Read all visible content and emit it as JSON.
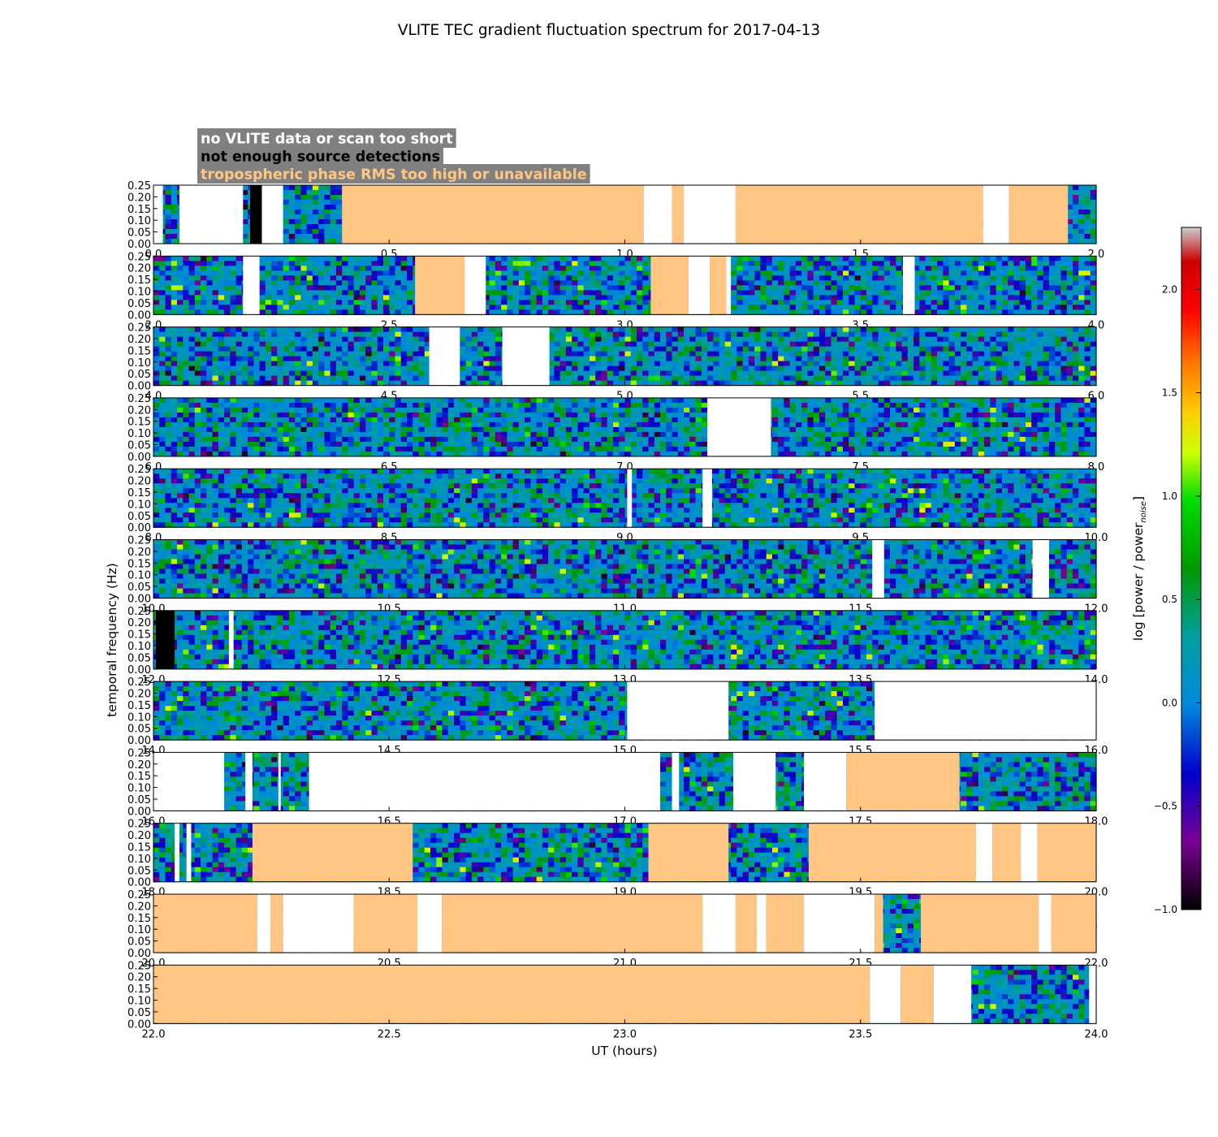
{
  "chart_data": {
    "type": "heatmap",
    "title": "VLITE TEC gradient fluctuation spectrum for 2017-04-13",
    "xlabel": "UT (hours)",
    "ylabel": "temporal frequency (Hz)",
    "ylim": [
      0,
      0.25
    ],
    "yticks": [
      "0.00",
      "0.05",
      "0.10",
      "0.15",
      "0.20",
      "0.25"
    ],
    "colorbar": {
      "label_main": "log [power / power",
      "label_sub": "noise",
      "label_end": "]",
      "range": [
        -1.0,
        2.3
      ],
      "ticks": [
        {
          "value": -1.0,
          "label": "−1.0"
        },
        {
          "value": -0.5,
          "label": "−0.5"
        },
        {
          "value": 0.0,
          "label": "0.0"
        },
        {
          "value": 0.5,
          "label": "0.5"
        },
        {
          "value": 1.0,
          "label": "1.0"
        },
        {
          "value": 1.5,
          "label": "1.5"
        },
        {
          "value": 2.0,
          "label": "2.0"
        }
      ],
      "colormap": [
        [
          0.0,
          "#000000"
        ],
        [
          0.1,
          "#7a0094"
        ],
        [
          0.2,
          "#0000cc"
        ],
        [
          0.3,
          "#0088dd"
        ],
        [
          0.4,
          "#00a0a0"
        ],
        [
          0.5,
          "#009900"
        ],
        [
          0.6,
          "#00dd00"
        ],
        [
          0.67,
          "#ccff00"
        ],
        [
          0.73,
          "#ffcc00"
        ],
        [
          0.8,
          "#ff7700"
        ],
        [
          0.88,
          "#ff0000"
        ],
        [
          0.95,
          "#cc0000"
        ],
        [
          1.0,
          "#cccccc"
        ]
      ]
    },
    "legend": {
      "placement": "top-left",
      "entries": [
        {
          "label": "no VLITE data or scan too short",
          "text_color": "#ffffff",
          "bg_color": "#808080"
        },
        {
          "label": "not enough source detections",
          "text_color": "#000000",
          "bg_color": "#808080"
        },
        {
          "label": "tropospheric phase RMS too high or unavailable",
          "text_color": "#ffc683",
          "bg_color": "#808080"
        }
      ]
    },
    "flag_colors": {
      "nodata": "#ffffff",
      "nodet": "#000000",
      "trop": "#ffc683"
    },
    "panels": [
      {
        "xlim": [
          0,
          2
        ],
        "xticks": [
          "0.0",
          "0.5",
          "1.0",
          "1.5",
          "2.0"
        ],
        "flags": [
          [
            0.0,
            0.02,
            "nodata"
          ],
          [
            0.055,
            0.19,
            "nodata"
          ],
          [
            0.205,
            0.23,
            "nodet"
          ],
          [
            0.23,
            0.275,
            "nodata"
          ],
          [
            0.4,
            1.04,
            "trop"
          ],
          [
            1.04,
            1.1,
            "nodata"
          ],
          [
            1.1,
            1.125,
            "trop"
          ],
          [
            1.125,
            1.235,
            "nodata"
          ],
          [
            1.235,
            1.76,
            "trop"
          ],
          [
            1.76,
            1.815,
            "nodata"
          ],
          [
            1.815,
            1.94,
            "trop"
          ]
        ]
      },
      {
        "xlim": [
          2,
          4
        ],
        "xticks": [
          "2.0",
          "2.5",
          "3.0",
          "3.5",
          "4.0"
        ],
        "flags": [
          [
            2.19,
            2.225,
            "nodata"
          ],
          [
            2.555,
            2.66,
            "trop"
          ],
          [
            2.66,
            2.705,
            "nodata"
          ],
          [
            3.055,
            3.135,
            "trop"
          ],
          [
            3.135,
            3.18,
            "nodata"
          ],
          [
            3.18,
            3.215,
            "trop"
          ],
          [
            3.215,
            3.225,
            "nodata"
          ],
          [
            3.59,
            3.615,
            "nodata"
          ]
        ]
      },
      {
        "xlim": [
          4,
          6
        ],
        "xticks": [
          "4.0",
          "4.5",
          "5.0",
          "5.5",
          "6.0"
        ],
        "flags": [
          [
            4.585,
            4.65,
            "nodata"
          ],
          [
            4.74,
            4.84,
            "nodata"
          ]
        ]
      },
      {
        "xlim": [
          6,
          8
        ],
        "xticks": [
          "6.0",
          "6.5",
          "7.0",
          "7.5",
          "8.0"
        ],
        "flags": [
          [
            7.175,
            7.31,
            "nodata"
          ]
        ]
      },
      {
        "xlim": [
          8,
          10
        ],
        "xticks": [
          "8.0",
          "8.5",
          "9.0",
          "9.5",
          "10.0"
        ],
        "flags": [
          [
            9.005,
            9.015,
            "nodata"
          ],
          [
            9.165,
            9.185,
            "nodata"
          ]
        ]
      },
      {
        "xlim": [
          10,
          12
        ],
        "xticks": [
          "10.0",
          "10.5",
          "11.0",
          "11.5",
          "12.0"
        ],
        "flags": [
          [
            11.525,
            11.55,
            "nodata"
          ],
          [
            11.865,
            11.9,
            "nodata"
          ]
        ]
      },
      {
        "xlim": [
          12,
          14
        ],
        "xticks": [
          "12.0",
          "12.5",
          "13.0",
          "13.5",
          "14.0"
        ],
        "flags": [
          [
            12.005,
            12.045,
            "nodet"
          ],
          [
            12.16,
            12.17,
            "nodata"
          ]
        ]
      },
      {
        "xlim": [
          14,
          16
        ],
        "xticks": [
          "14.0",
          "14.5",
          "15.0",
          "15.5",
          "16.0"
        ],
        "flags": [
          [
            15.005,
            15.22,
            "nodata"
          ],
          [
            15.53,
            16.0,
            "nodata"
          ]
        ]
      },
      {
        "xlim": [
          16,
          18
        ],
        "xticks": [
          "16.0",
          "16.5",
          "17.0",
          "17.5",
          "18.0"
        ],
        "flags": [
          [
            16.0,
            16.15,
            "nodata"
          ],
          [
            16.195,
            16.21,
            "nodata"
          ],
          [
            16.265,
            16.27,
            "nodata"
          ],
          [
            16.33,
            17.075,
            "nodata"
          ],
          [
            17.1,
            17.115,
            "nodata"
          ],
          [
            17.23,
            17.32,
            "nodata"
          ],
          [
            17.38,
            17.47,
            "nodata"
          ],
          [
            17.47,
            17.71,
            "trop"
          ]
        ]
      },
      {
        "xlim": [
          18,
          20
        ],
        "xticks": [
          "18.0",
          "18.5",
          "19.0",
          "19.5",
          "20.0"
        ],
        "flags": [
          [
            18.045,
            18.055,
            "nodata"
          ],
          [
            18.07,
            18.08,
            "nodata"
          ],
          [
            18.21,
            18.55,
            "trop"
          ],
          [
            19.05,
            19.22,
            "trop"
          ],
          [
            19.39,
            19.745,
            "trop"
          ],
          [
            19.745,
            19.78,
            "nodata"
          ],
          [
            19.78,
            19.84,
            "trop"
          ],
          [
            19.84,
            19.875,
            "nodata"
          ],
          [
            19.875,
            20.0,
            "trop"
          ]
        ]
      },
      {
        "xlim": [
          20,
          22
        ],
        "xticks": [
          "20.0",
          "20.5",
          "21.0",
          "21.5",
          "22.0"
        ],
        "flags": [
          [
            20.0,
            20.22,
            "trop"
          ],
          [
            20.22,
            20.248,
            "nodata"
          ],
          [
            20.248,
            20.275,
            "trop"
          ],
          [
            20.275,
            20.425,
            "nodata"
          ],
          [
            20.425,
            20.56,
            "trop"
          ],
          [
            20.56,
            20.612,
            "nodata"
          ],
          [
            20.612,
            21.165,
            "trop"
          ],
          [
            21.165,
            21.235,
            "nodata"
          ],
          [
            21.235,
            21.28,
            "trop"
          ],
          [
            21.28,
            21.3,
            "nodata"
          ],
          [
            21.3,
            21.38,
            "trop"
          ],
          [
            21.38,
            21.53,
            "nodata"
          ],
          [
            21.53,
            21.548,
            "trop"
          ],
          [
            21.628,
            21.878,
            "trop"
          ],
          [
            21.878,
            21.905,
            "nodata"
          ],
          [
            21.905,
            22.0,
            "trop"
          ]
        ]
      },
      {
        "xlim": [
          22,
          24
        ],
        "xticks": [
          "22.0",
          "22.5",
          "23.0",
          "23.5",
          "24.0"
        ],
        "flags": [
          [
            22.0,
            23.52,
            "trop"
          ],
          [
            23.52,
            23.585,
            "nodata"
          ],
          [
            23.585,
            23.655,
            "trop"
          ],
          [
            23.655,
            23.735,
            "nodata"
          ],
          [
            23.985,
            24.0,
            "nodata"
          ]
        ]
      }
    ]
  }
}
